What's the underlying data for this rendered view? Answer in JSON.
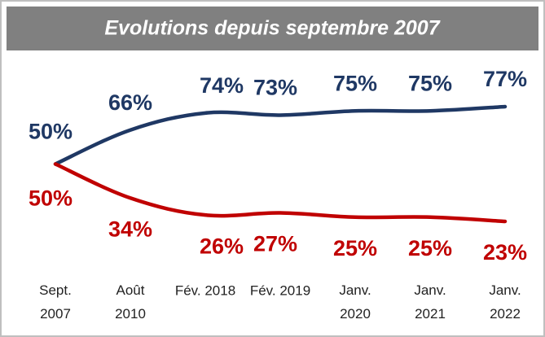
{
  "chart_data": {
    "type": "line",
    "title": "Evolutions depuis septembre 2007",
    "categories": [
      "Sept.\n2007",
      "Août\n2010",
      "Fév. 2018",
      "Fév. 2019",
      "Janv.\n2020",
      "Janv.\n2021",
      "Janv.\n2022"
    ],
    "series": [
      {
        "color": "#1f3864",
        "values": [
          50,
          66,
          74,
          73,
          75,
          75,
          77
        ],
        "value_labels": [
          "50%",
          "66%",
          "74%",
          "73%",
          "75%",
          "75%",
          "77%"
        ]
      },
      {
        "color": "#c00000",
        "values": [
          50,
          34,
          26,
          27,
          25,
          25,
          23
        ],
        "value_labels": [
          "50%",
          "34%",
          "26%",
          "27%",
          "25%",
          "25%",
          "23%"
        ]
      }
    ]
  }
}
